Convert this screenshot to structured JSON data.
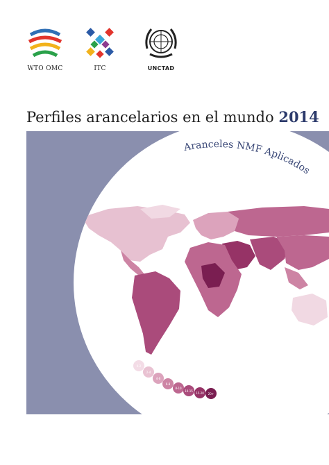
{
  "logos": [
    {
      "name": "wto-logo",
      "label": "WTO OMC"
    },
    {
      "name": "itc-logo",
      "label": "ITC"
    },
    {
      "name": "unctad-logo",
      "label": "UNCTAD"
    }
  ],
  "title": {
    "text": "Perfiles arancelarios en el mundo",
    "year": "2014"
  },
  "subtitle": "Aranceles NMF Aplicados",
  "legend": [
    {
      "label": "0-2",
      "color": "#f3dce6"
    },
    {
      "label": "2-4",
      "color": "#e9c2d2"
    },
    {
      "label": "4-6",
      "color": "#dca3bc"
    },
    {
      "label": "6-8",
      "color": "#cd84a4"
    },
    {
      "label": "8-10",
      "color": "#bd6790"
    },
    {
      "label": "10-15",
      "color": "#aa4b7b"
    },
    {
      "label": "15-20",
      "color": "#963366"
    },
    {
      "label": "20+",
      "color": "#7a1e51"
    }
  ],
  "colors": {
    "panel": "#8a8fae",
    "title_year": "#2c3a6b",
    "subtitle": "#3a4877"
  }
}
